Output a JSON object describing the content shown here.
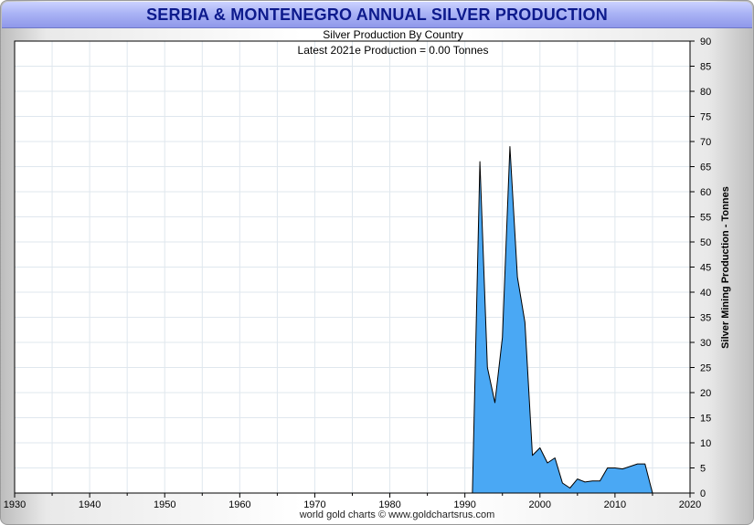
{
  "window": {
    "title": "SERBIA & MONTENEGRO ANNUAL SILVER PRODUCTION"
  },
  "footer": {
    "credit": "world gold charts © www.goldchartsrus.com"
  },
  "colors": {
    "area_fill": "#4aa8f4",
    "area_stroke": "#000000",
    "grid": "#dfe7ee",
    "title_text": "#0d1a8c"
  },
  "chart_data": {
    "type": "area",
    "title": "Silver Production By Country",
    "subtitle": "Latest 2021e  Production = 0.00 Tonnes",
    "xlabel": "",
    "ylabel": "Silver Mining Production - Tonnes",
    "xlim": [
      1930,
      2020
    ],
    "ylim": [
      0,
      90
    ],
    "x_ticks": [
      1930,
      1940,
      1950,
      1960,
      1970,
      1980,
      1990,
      2000,
      2010,
      2020
    ],
    "y_ticks": [
      0,
      5,
      10,
      15,
      20,
      25,
      30,
      35,
      40,
      45,
      50,
      55,
      60,
      65,
      70,
      75,
      80,
      85,
      90
    ],
    "grid": true,
    "legend": "none",
    "series": [
      {
        "name": "Serbia & Montenegro",
        "x": [
          1991,
          1992,
          1993,
          1994,
          1995,
          1996,
          1997,
          1998,
          1999,
          2000,
          2001,
          2002,
          2003,
          2004,
          2005,
          2006,
          2007,
          2008,
          2009,
          2010,
          2011,
          2012,
          2013,
          2014,
          2015
        ],
        "y": [
          0,
          66,
          25,
          18,
          31,
          69,
          43,
          34,
          7.5,
          9,
          6,
          7,
          2,
          1,
          2.8,
          2.2,
          2.4,
          2.4,
          5,
          5,
          4.8,
          5.3,
          5.8,
          5.8,
          0
        ]
      }
    ]
  }
}
